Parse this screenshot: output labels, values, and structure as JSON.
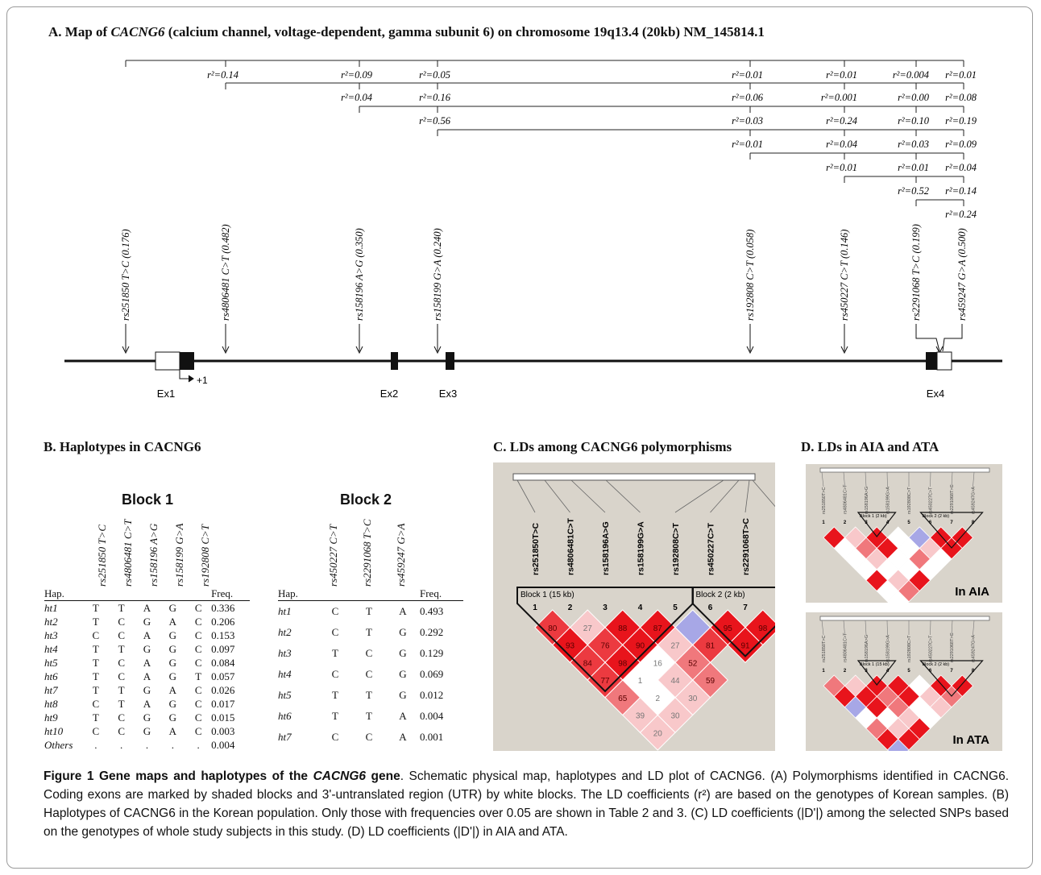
{
  "panelA": {
    "title": "A. Map of CACNG6 (calcium channel, voltage-dependent, gamma subunit 6) on chromosome 19q13.4 (20kb) NM_145814.1",
    "title_parts": [
      "A. Map of ",
      "CACNG6",
      " (calcium channel, voltage-dependent, gamma subunit 6) on chromosome 19q13.4 (20kb) NM_145814.1"
    ],
    "snps": [
      "rs251850 T>C (0.176)",
      "rs4806481 C>T (0.482)",
      "rs158196 A>G (0.350)",
      "rs158199 G>A (0.240)",
      "rs192808 C>T (0.058)",
      "rs450227 C>T (0.146)",
      "rs2291068 T>C (0.199)",
      "rs459247 G>A (0.500)"
    ],
    "r2_rows": [
      [
        "r²=0.14",
        "r²=0.09",
        "r²=0.05",
        "r²=0.01",
        "r²=0.01",
        "r²=0.004",
        "r²=0.01"
      ],
      [
        "r²=0.04",
        "r²=0.16",
        "r²=0.06",
        "r²=0.001",
        "r²=0.00",
        "r²=0.08"
      ],
      [
        "r²=0.56",
        "r²=0.03",
        "r²=0.24",
        "r²=0.10",
        "r²=0.19"
      ],
      [
        "r²=0.01",
        "r²=0.04",
        "r²=0.03",
        "r²=0.09"
      ],
      [
        "r²=0.01",
        "r²=0.01",
        "r²=0.04"
      ],
      [
        "r²=0.52",
        "r²=0.14"
      ],
      [
        "r²=0.24"
      ]
    ],
    "exons": [
      "Ex1",
      "Ex2",
      "Ex3",
      "Ex4"
    ],
    "tss_label": "+1"
  },
  "panelB": {
    "title": "B. Haplotypes in CACNG6",
    "block1": {
      "title": "Block 1",
      "snps": [
        "rs251850 T>C",
        "rs4806481 C>T",
        "rs158196 A>G",
        "rs158199 G>A",
        "rs192808 C>T"
      ],
      "hap_header": "Hap.",
      "freq_header": "Freq.",
      "rows": [
        {
          "hap": "ht1",
          "alleles": [
            "T",
            "T",
            "A",
            "G",
            "C"
          ],
          "freq": "0.336"
        },
        {
          "hap": "ht2",
          "alleles": [
            "T",
            "C",
            "G",
            "A",
            "C"
          ],
          "freq": "0.206"
        },
        {
          "hap": "ht3",
          "alleles": [
            "C",
            "C",
            "A",
            "G",
            "C"
          ],
          "freq": "0.153"
        },
        {
          "hap": "ht4",
          "alleles": [
            "T",
            "T",
            "G",
            "G",
            "C"
          ],
          "freq": "0.097"
        },
        {
          "hap": "ht5",
          "alleles": [
            "T",
            "C",
            "A",
            "G",
            "C"
          ],
          "freq": "0.084"
        },
        {
          "hap": "ht6",
          "alleles": [
            "T",
            "C",
            "A",
            "G",
            "T"
          ],
          "freq": "0.057"
        },
        {
          "hap": "ht7",
          "alleles": [
            "T",
            "T",
            "G",
            "A",
            "C"
          ],
          "freq": "0.026"
        },
        {
          "hap": "ht8",
          "alleles": [
            "C",
            "T",
            "A",
            "G",
            "C"
          ],
          "freq": "0.017"
        },
        {
          "hap": "ht9",
          "alleles": [
            "T",
            "C",
            "G",
            "G",
            "C"
          ],
          "freq": "0.015"
        },
        {
          "hap": "ht10",
          "alleles": [
            "C",
            "C",
            "G",
            "A",
            "C"
          ],
          "freq": "0.003"
        },
        {
          "hap": "Others",
          "alleles": [
            ".",
            ".",
            ".",
            ".",
            "."
          ],
          "freq": "0.004"
        }
      ]
    },
    "block2": {
      "title": "Block 2",
      "snps": [
        "rs450227 C>T",
        "rs2291068 T>C",
        "rs459247 G>A"
      ],
      "hap_header": "Hap.",
      "freq_header": "Freq.",
      "rows": [
        {
          "hap": "ht1",
          "alleles": [
            "C",
            "T",
            "A"
          ],
          "freq": "0.493"
        },
        {
          "hap": "ht2",
          "alleles": [
            "C",
            "T",
            "G"
          ],
          "freq": "0.292"
        },
        {
          "hap": "ht3",
          "alleles": [
            "T",
            "C",
            "G"
          ],
          "freq": "0.129"
        },
        {
          "hap": "ht4",
          "alleles": [
            "C",
            "C",
            "G"
          ],
          "freq": "0.069"
        },
        {
          "hap": "ht5",
          "alleles": [
            "T",
            "T",
            "G"
          ],
          "freq": "0.012"
        },
        {
          "hap": "ht6",
          "alleles": [
            "T",
            "T",
            "A"
          ],
          "freq": "0.004"
        },
        {
          "hap": "ht7",
          "alleles": [
            "C",
            "C",
            "A"
          ],
          "freq": "0.001"
        }
      ]
    }
  },
  "panelC": {
    "title": "C. LDs among CACNG6 polymorphisms",
    "snps": [
      "rs251850T>C",
      "rs4806481C>T",
      "rs158196A>G",
      "rs158199G>A",
      "rs192808C>T",
      "rs450227C>T",
      "rs2291068T>C",
      "rs459247G>A"
    ],
    "block1_label": "Block 1 (15 kb)",
    "block2_label": "Block 2 (2 kb)",
    "indices": [
      "1",
      "2",
      "3",
      "4",
      "5",
      "6",
      "7",
      "8"
    ],
    "ld": [
      [
        "80",
        "27",
        "88",
        "87",
        "",
        "95",
        "98"
      ],
      [
        "93",
        "76",
        "90",
        "27",
        "81",
        "91"
      ],
      [
        "84",
        "98",
        "16",
        "52"
      ],
      [
        "77",
        "1",
        "44",
        "59"
      ],
      [
        "65",
        "2",
        "30"
      ],
      [
        "39",
        "30"
      ],
      [
        "20"
      ]
    ]
  },
  "panelD": {
    "title": "D. LDs in AIA and ATA",
    "aia_label": "In AIA",
    "ata_label": "In ATA",
    "snps": [
      "rs251850T>C",
      "rs4806481C>T",
      "rs158196A>G",
      "rs158199G>A",
      "rs192808C>T",
      "rs450227C>T",
      "rs2291068T>C",
      "rs459247G>A"
    ],
    "indices": [
      "1",
      "2",
      "3",
      "4",
      "5",
      "6",
      "7",
      "8"
    ],
    "block1_label_aia": "Block 1 (2 kb)",
    "block2_label_aia": "Block 2 (2 kb)",
    "block1_label_ata": "Block 1 (15 kb)",
    "block2_label_ata": "Block 2 (2 kb)"
  },
  "caption": {
    "lead": "Figure 1 Gene maps and haplotypes of the ",
    "lead_gene": "CACNG6",
    "lead_end": " gene",
    "body": ". Schematic physical map, haplotypes and LD plot of CACNG6. (A) Polymorphisms identified in CACNG6. Coding exons are marked by shaded blocks and 3'-untranslated region (UTR) by white blocks. The LD coefficients (r²) are based on the genotypes of Korean samples. (B) Haplotypes of CACNG6 in the Korean population. Only those with frequencies over 0.05 are shown in Table 2 and 3. (C) LD coefficients (|D'|) among the selected SNPs based on the genotypes of whole study subjects in this study. (D) LD coefficients (|D'|) in AIA and ATA."
  },
  "colors": {
    "ld_strong": "#e8141c",
    "ld_mid": "#f0787c",
    "ld_weak": "#f8c8ca",
    "ld_none": "#ffffff",
    "ld_blue": "#a7a7e6",
    "panel_bg": "#d9d4cb"
  }
}
